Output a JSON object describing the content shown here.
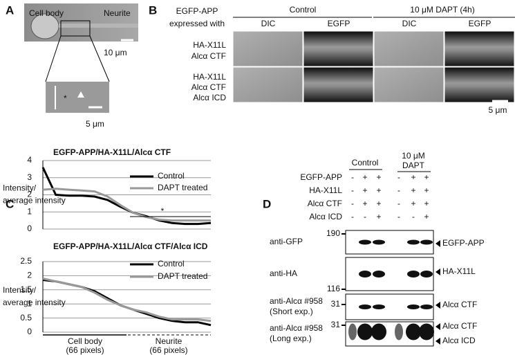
{
  "panel_a": {
    "letter": "A",
    "labels": [
      "Cell body",
      "Neurite"
    ],
    "scale_main": "10 μm",
    "scale_inset": "5 μm"
  },
  "panel_b": {
    "letter": "B",
    "header": [
      "EGFP-APP",
      "expressed with"
    ],
    "conditions": [
      "Control",
      "10 μM DAPT (4h)"
    ],
    "channels": [
      "DIC",
      "EGFP",
      "DIC",
      "EGFP"
    ],
    "rows": [
      [
        "HA-X11L",
        "Alcα CTF"
      ],
      [
        "HA-X11L",
        "Alcα CTF",
        "Alcα ICD"
      ]
    ],
    "scale": "5 μm"
  },
  "panel_c": {
    "letter": "C",
    "y_label": [
      "Intensity/",
      "average intensity"
    ],
    "x_groups": [
      [
        "Cell body",
        "(66 pixels)"
      ],
      [
        "Neurite",
        "(66 pixels)"
      ]
    ]
  },
  "chart_data": [
    {
      "type": "line",
      "title": "EGFP-APP/HA-X11L/Alcα CTF",
      "ylim": [
        0,
        4
      ],
      "yticks": [
        0,
        1,
        2,
        3,
        4
      ],
      "grid": true,
      "legend": "upper right",
      "annotation": "*",
      "series": [
        {
          "name": "Control",
          "color": "#000000",
          "values": [
            3.6,
            2.0,
            1.95,
            1.95,
            1.9,
            1.7,
            1.3,
            0.95,
            0.75,
            0.5,
            0.35,
            0.3,
            0.3,
            0.35
          ]
        },
        {
          "name": "DAPT treated",
          "color": "#999999",
          "values": [
            2.3,
            2.35,
            2.3,
            2.25,
            2.2,
            1.9,
            1.4,
            0.95,
            0.7,
            0.55,
            0.5,
            0.5,
            0.5,
            0.5
          ]
        }
      ]
    },
    {
      "type": "line",
      "title": "EGFP-APP/HA-X11L/Alcα CTF/Alcα ICD",
      "ylim": [
        0,
        2.5
      ],
      "yticks": [
        0,
        0.5,
        1,
        1.5,
        2,
        2.5
      ],
      "grid": true,
      "legend": "upper right",
      "series": [
        {
          "name": "Control",
          "color": "#000000",
          "values": [
            1.85,
            1.8,
            1.7,
            1.6,
            1.45,
            1.2,
            0.95,
            0.8,
            0.65,
            0.5,
            0.4,
            0.35,
            0.35,
            0.25
          ]
        },
        {
          "name": "DAPT treated",
          "color": "#999999",
          "values": [
            1.9,
            1.8,
            1.7,
            1.6,
            1.4,
            1.15,
            0.95,
            0.8,
            0.7,
            0.55,
            0.45,
            0.45,
            0.45,
            0.4
          ]
        }
      ]
    }
  ],
  "panel_d": {
    "letter": "D",
    "groups": [
      [
        "Control"
      ],
      [
        "10 μM",
        "DAPT"
      ]
    ],
    "rows": [
      {
        "label": "EGFP-APP",
        "signs": [
          "-",
          "+",
          "+",
          "-",
          "+",
          "+"
        ]
      },
      {
        "label": "HA-X11L",
        "signs": [
          "-",
          "+",
          "+",
          "-",
          "+",
          "+"
        ]
      },
      {
        "label": "Alcα CTF",
        "signs": [
          "-",
          "+",
          "+",
          "-",
          "+",
          "+"
        ]
      },
      {
        "label": "Alcα ICD",
        "signs": [
          "-",
          "-",
          "+",
          "-",
          "-",
          "+"
        ]
      }
    ],
    "antibodies": [
      [
        "anti-GFP"
      ],
      [
        "anti-HA"
      ],
      [
        "anti-Alcα #958",
        "(Short exp.)"
      ],
      [
        "anti-Alcα #958",
        "(Long exp.)"
      ]
    ],
    "markers": [
      "190",
      "116",
      "31",
      "31"
    ],
    "bands": [
      "EGFP-APP",
      "HA-X11L",
      "Alcα CTF",
      "Alcα CTF",
      "Alcα ICD"
    ]
  }
}
